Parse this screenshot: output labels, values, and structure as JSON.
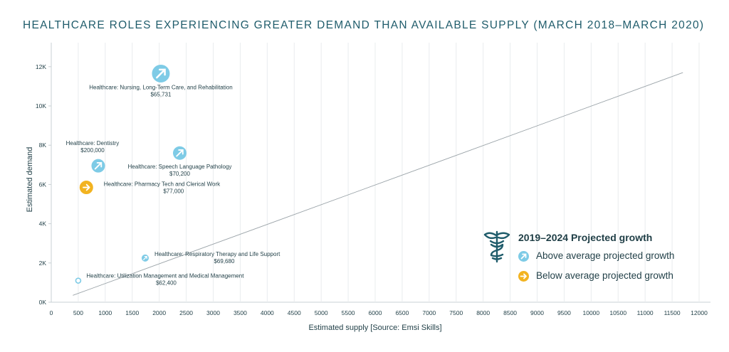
{
  "title": "HEALTHCARE ROLES EXPERIENCING GREATER DEMAND THAN AVAILABLE SUPPLY (MARCH 2018–MARCH 2020)",
  "legend": {
    "title": "2019–2024 Projected growth",
    "icon": "caduceus-icon",
    "items": [
      {
        "label": "Above average projected growth",
        "color": "#7ecbe6",
        "icon": "arrow-up-right-icon"
      },
      {
        "label": "Below average projected growth",
        "color": "#f2b320",
        "icon": "arrow-right-icon"
      }
    ]
  },
  "chart_data": {
    "type": "scatter",
    "xlabel": "Estimated supply [Source: Emsi Skills]",
    "ylabel": "Estimated demand",
    "xlim": [
      0,
      12000
    ],
    "ylim": [
      0,
      12500
    ],
    "x_ticks": [
      "0",
      "500",
      "1000",
      "1500",
      "2000",
      "2500",
      "3000",
      "3500",
      "4000",
      "4500",
      "5000",
      "5500",
      "6000",
      "6500",
      "7000",
      "7500",
      "8000",
      "8500",
      "9000",
      "9500",
      "10000",
      "10500",
      "11000",
      "11500",
      "12000"
    ],
    "y_ticks": [
      "0K",
      "2K",
      "4K",
      "6K",
      "8K",
      "10K",
      "12K"
    ],
    "grid": "vertical",
    "reference_line": {
      "from": [
        400,
        350
      ],
      "to": [
        11700,
        11700
      ]
    },
    "points": [
      {
        "name": "Healthcare: Nursing, Long-Term Care, and Rehabilitation",
        "salary": "$65,731",
        "x": 2030,
        "y": 11650,
        "growth": "above",
        "size": "large"
      },
      {
        "name": "Healthcare: Dentistry",
        "salary": "$200,000",
        "x": 870,
        "y": 6950,
        "growth": "above",
        "size": "medium"
      },
      {
        "name": "Healthcare: Speech Language Pathology",
        "salary": "$70,200",
        "x": 2380,
        "y": 7600,
        "growth": "above",
        "size": "medium"
      },
      {
        "name": "Healthcare: Pharmacy Tech and Clerical Work",
        "salary": "$77,000",
        "x": 650,
        "y": 5850,
        "growth": "below",
        "size": "medium"
      },
      {
        "name": "Healthcare: Respiratory Therapy and Life Support",
        "salary": "$69,680",
        "x": 1740,
        "y": 2250,
        "growth": "above",
        "size": "small"
      },
      {
        "name": "Healthcare: Utilization Management and Medical Management",
        "salary": "$62,400",
        "x": 500,
        "y": 1100,
        "growth": "above",
        "size": "tiny"
      }
    ],
    "colors": {
      "above": "#7ecbe6",
      "below": "#f2b320",
      "text": "#1f3e46",
      "grid": "#e9ecee",
      "line": "#9aa3a8"
    }
  }
}
